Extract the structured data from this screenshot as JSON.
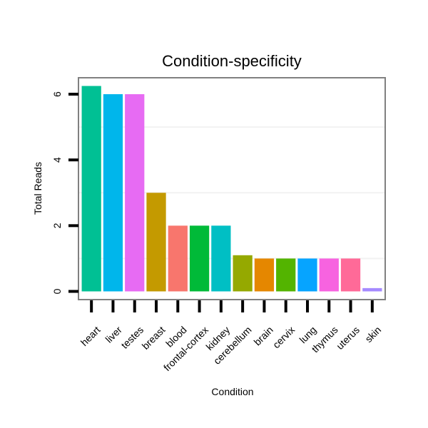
{
  "chart_data": {
    "type": "bar",
    "title": "Condition-specificity",
    "xlabel": "Condition",
    "ylabel": "Total Reads",
    "ylim": [
      -0.25,
      6.5
    ],
    "yticks": [
      0,
      2,
      4,
      6
    ],
    "grid": true,
    "categories": [
      "heart",
      "liver",
      "testes",
      "breast",
      "blood",
      "frontal-cortex",
      "kidney",
      "cerebellum",
      "brain",
      "cervix",
      "lung",
      "thymus",
      "uterus",
      "skin"
    ],
    "values": [
      6.25,
      6.0,
      6.0,
      3.0,
      2.0,
      2.0,
      2.0,
      1.1,
      1.0,
      1.0,
      1.0,
      1.0,
      1.0,
      0.1
    ],
    "colors": [
      "#00C094",
      "#00B6EB",
      "#E76BF3",
      "#C49A00",
      "#F8766D",
      "#00BA38",
      "#00BFC4",
      "#95A900",
      "#E58700",
      "#53B400",
      "#06A4FF",
      "#F763E0",
      "#FF6A98",
      "#A58AFF"
    ]
  }
}
